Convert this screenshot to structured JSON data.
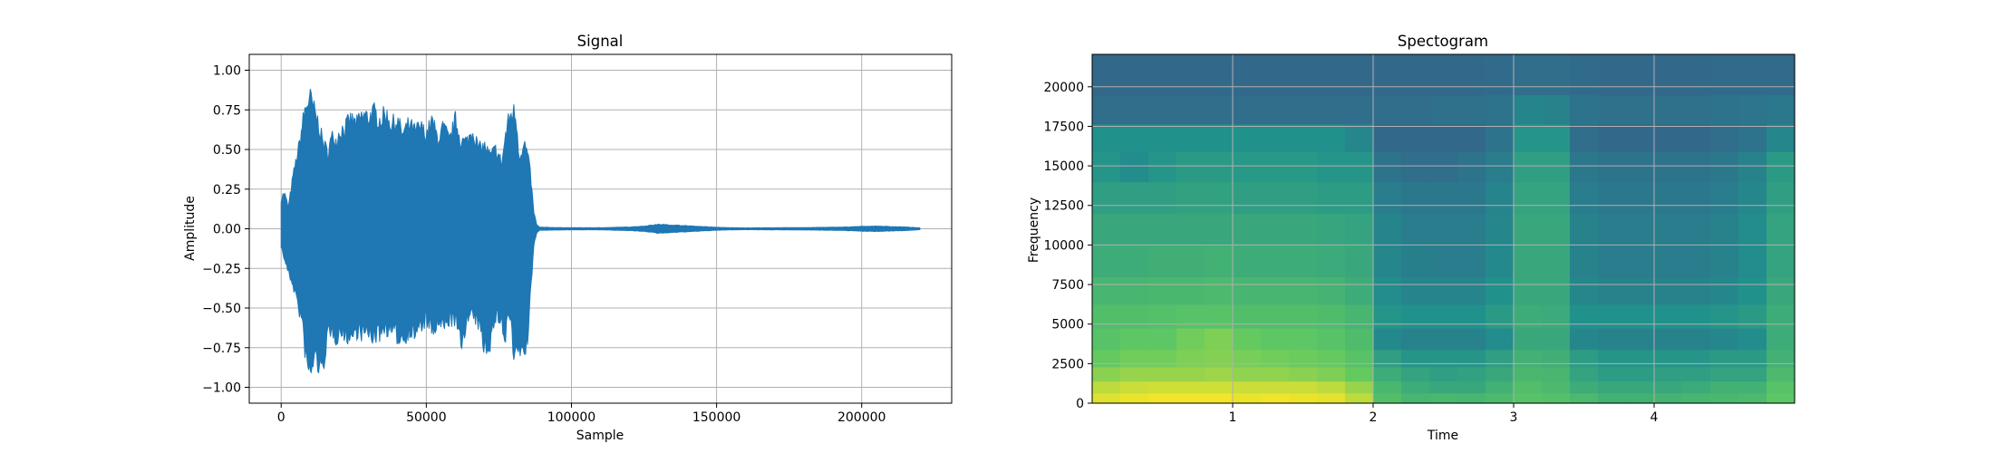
{
  "chart_data": [
    {
      "type": "line",
      "title": "Signal",
      "xlabel": "Sample",
      "ylabel": "Amplitude",
      "xlim": [
        -11000,
        231000
      ],
      "ylim": [
        -1.1,
        1.1
      ],
      "grid": true,
      "color": "#1f77b4",
      "xticks": [
        {
          "value": 0,
          "label": "0"
        },
        {
          "value": 50000,
          "label": "50000"
        },
        {
          "value": 100000,
          "label": "100000"
        },
        {
          "value": 150000,
          "label": "150000"
        },
        {
          "value": 200000,
          "label": "200000"
        }
      ],
      "yticks": [
        {
          "value": 1.0,
          "label": "1.00"
        },
        {
          "value": 0.75,
          "label": "0.75"
        },
        {
          "value": 0.5,
          "label": "0.50"
        },
        {
          "value": 0.25,
          "label": "0.25"
        },
        {
          "value": 0.0,
          "label": "0.00"
        },
        {
          "value": -0.25,
          "label": "−0.25"
        },
        {
          "value": -0.5,
          "label": "−0.50"
        },
        {
          "value": -0.75,
          "label": "−0.75"
        },
        {
          "value": -1.0,
          "label": "−1.00"
        }
      ],
      "envelope": {
        "x": [
          0,
          1000,
          2500,
          4000,
          5000,
          6000,
          7000,
          8000,
          9000,
          10000,
          11000,
          12000,
          13000,
          14000,
          15000,
          16000,
          17000,
          18000,
          19000,
          20000,
          22000,
          24000,
          26000,
          28000,
          30000,
          32000,
          34000,
          36000,
          38000,
          40000,
          42000,
          44000,
          46000,
          48000,
          50000,
          52000,
          54000,
          56000,
          58000,
          60000,
          62000,
          64000,
          66000,
          68000,
          70000,
          72000,
          74000,
          76000,
          77000,
          78000,
          79000,
          80000,
          81000,
          82000,
          83000,
          84000,
          85000,
          86000,
          87000,
          88000,
          89000,
          90000,
          100000,
          110000,
          120000,
          125000,
          130000,
          135000,
          140000,
          145000,
          150000,
          155000,
          160000,
          170000,
          180000,
          190000,
          195000,
          200000,
          205000,
          210000,
          215000,
          220000
        ],
        "upper": [
          0.2,
          0.25,
          0.15,
          0.35,
          0.45,
          0.55,
          0.68,
          0.8,
          0.87,
          0.9,
          0.84,
          0.77,
          0.72,
          0.62,
          0.57,
          0.52,
          0.6,
          0.65,
          0.6,
          0.67,
          0.7,
          0.75,
          0.72,
          0.78,
          0.77,
          0.8,
          0.75,
          0.79,
          0.72,
          0.74,
          0.65,
          0.72,
          0.67,
          0.7,
          0.65,
          0.74,
          0.62,
          0.7,
          0.6,
          0.75,
          0.6,
          0.6,
          0.68,
          0.55,
          0.57,
          0.5,
          0.55,
          0.45,
          0.6,
          0.72,
          0.78,
          0.81,
          0.76,
          0.5,
          0.55,
          0.58,
          0.5,
          0.35,
          0.12,
          0.03,
          0.01,
          0.01,
          0.007,
          0.007,
          0.012,
          0.018,
          0.03,
          0.025,
          0.02,
          0.015,
          0.01,
          0.007,
          0.006,
          0.007,
          0.008,
          0.01,
          0.012,
          0.016,
          0.018,
          0.015,
          0.012,
          0.006
        ],
        "lower": [
          -0.12,
          -0.2,
          -0.3,
          -0.38,
          -0.45,
          -0.55,
          -0.62,
          -0.8,
          -0.95,
          -1.0,
          -0.92,
          -0.87,
          -0.95,
          -1.0,
          -0.86,
          -0.72,
          -0.75,
          -0.7,
          -0.75,
          -0.7,
          -0.72,
          -0.75,
          -0.7,
          -0.72,
          -0.72,
          -0.74,
          -0.72,
          -0.68,
          -0.7,
          -0.74,
          -0.75,
          -0.7,
          -0.72,
          -0.68,
          -0.62,
          -0.72,
          -0.65,
          -0.68,
          -0.62,
          -0.63,
          -0.8,
          -0.62,
          -0.6,
          -0.65,
          -0.82,
          -0.78,
          -0.6,
          -0.62,
          -0.82,
          -0.58,
          -0.62,
          -0.88,
          -0.9,
          -0.8,
          -0.88,
          -0.82,
          -0.76,
          -0.42,
          -0.12,
          -0.03,
          -0.01,
          -0.01,
          -0.007,
          -0.007,
          -0.012,
          -0.018,
          -0.03,
          -0.025,
          -0.02,
          -0.015,
          -0.01,
          -0.007,
          -0.006,
          -0.007,
          -0.008,
          -0.01,
          -0.012,
          -0.016,
          -0.018,
          -0.015,
          -0.012,
          -0.006
        ]
      }
    },
    {
      "type": "heatmap",
      "title": "Spectogram",
      "xlabel": "Time",
      "ylabel": "Frequency",
      "xlim": [
        0.0,
        5.0
      ],
      "ylim": [
        0,
        22050
      ],
      "grid": true,
      "colormap": "viridis",
      "xticks": [
        {
          "value": 1,
          "label": "1"
        },
        {
          "value": 2,
          "label": "2"
        },
        {
          "value": 3,
          "label": "3"
        },
        {
          "value": 4,
          "label": "4"
        }
      ],
      "yticks": [
        {
          "value": 0,
          "label": "0"
        },
        {
          "value": 2500,
          "label": "2500"
        },
        {
          "value": 5000,
          "label": "5000"
        },
        {
          "value": 7500,
          "label": "7500"
        },
        {
          "value": 10000,
          "label": "10000"
        },
        {
          "value": 12500,
          "label": "12500"
        },
        {
          "value": 15000,
          "label": "15000"
        },
        {
          "value": 17500,
          "label": "17500"
        },
        {
          "value": 20000,
          "label": "20000"
        }
      ],
      "time_bins": [
        0.1,
        0.3,
        0.5,
        0.7,
        0.9,
        1.1,
        1.3,
        1.5,
        1.7,
        1.9,
        2.1,
        2.3,
        2.5,
        2.7,
        2.9,
        3.1,
        3.3,
        3.5,
        3.7,
        3.9,
        4.1,
        4.3,
        4.5,
        4.7,
        4.9
      ],
      "freq_bins": [
        300,
        1000,
        1800,
        2800,
        4000,
        5500,
        7000,
        9000,
        11000,
        13000,
        15000,
        16800,
        18500,
        20500
      ],
      "intensity": [
        [
          0.95,
          0.97,
          0.98,
          0.98,
          0.98,
          0.97,
          0.98,
          0.97,
          0.96,
          0.9,
          0.7,
          0.66,
          0.67,
          0.66,
          0.68,
          0.72,
          0.71,
          0.68,
          0.64,
          0.64,
          0.65,
          0.66,
          0.67,
          0.68,
          0.74
        ],
        [
          0.9,
          0.92,
          0.93,
          0.93,
          0.93,
          0.92,
          0.92,
          0.92,
          0.9,
          0.84,
          0.67,
          0.62,
          0.6,
          0.6,
          0.64,
          0.7,
          0.68,
          0.62,
          0.6,
          0.6,
          0.6,
          0.61,
          0.64,
          0.64,
          0.72
        ],
        [
          0.82,
          0.84,
          0.84,
          0.84,
          0.85,
          0.83,
          0.83,
          0.82,
          0.8,
          0.76,
          0.62,
          0.58,
          0.56,
          0.57,
          0.6,
          0.67,
          0.66,
          0.58,
          0.55,
          0.55,
          0.56,
          0.56,
          0.58,
          0.58,
          0.68
        ],
        [
          0.76,
          0.78,
          0.78,
          0.8,
          0.81,
          0.79,
          0.78,
          0.77,
          0.76,
          0.72,
          0.56,
          0.52,
          0.52,
          0.52,
          0.56,
          0.64,
          0.63,
          0.55,
          0.52,
          0.52,
          0.52,
          0.52,
          0.54,
          0.54,
          0.64
        ],
        [
          0.72,
          0.74,
          0.74,
          0.78,
          0.8,
          0.76,
          0.74,
          0.74,
          0.72,
          0.69,
          0.47,
          0.44,
          0.44,
          0.44,
          0.48,
          0.6,
          0.6,
          0.46,
          0.44,
          0.44,
          0.44,
          0.44,
          0.46,
          0.48,
          0.62
        ],
        [
          0.7,
          0.7,
          0.71,
          0.72,
          0.72,
          0.7,
          0.7,
          0.7,
          0.69,
          0.66,
          0.52,
          0.5,
          0.5,
          0.5,
          0.54,
          0.62,
          0.61,
          0.5,
          0.5,
          0.5,
          0.5,
          0.5,
          0.52,
          0.54,
          0.62
        ],
        [
          0.66,
          0.66,
          0.67,
          0.67,
          0.68,
          0.66,
          0.66,
          0.66,
          0.65,
          0.62,
          0.48,
          0.45,
          0.45,
          0.45,
          0.5,
          0.6,
          0.6,
          0.46,
          0.44,
          0.44,
          0.44,
          0.44,
          0.46,
          0.5,
          0.6
        ],
        [
          0.62,
          0.62,
          0.63,
          0.63,
          0.64,
          0.62,
          0.62,
          0.62,
          0.61,
          0.6,
          0.46,
          0.43,
          0.42,
          0.42,
          0.47,
          0.6,
          0.6,
          0.44,
          0.42,
          0.42,
          0.42,
          0.42,
          0.44,
          0.48,
          0.58
        ],
        [
          0.6,
          0.6,
          0.6,
          0.6,
          0.6,
          0.6,
          0.6,
          0.6,
          0.59,
          0.58,
          0.45,
          0.42,
          0.42,
          0.42,
          0.46,
          0.6,
          0.6,
          0.44,
          0.42,
          0.42,
          0.42,
          0.42,
          0.44,
          0.48,
          0.58
        ],
        [
          0.56,
          0.56,
          0.56,
          0.57,
          0.57,
          0.56,
          0.56,
          0.56,
          0.55,
          0.55,
          0.42,
          0.4,
          0.4,
          0.4,
          0.45,
          0.58,
          0.58,
          0.42,
          0.4,
          0.4,
          0.4,
          0.4,
          0.42,
          0.46,
          0.56
        ],
        [
          0.52,
          0.48,
          0.52,
          0.54,
          0.54,
          0.53,
          0.53,
          0.53,
          0.52,
          0.52,
          0.38,
          0.36,
          0.36,
          0.38,
          0.42,
          0.56,
          0.56,
          0.4,
          0.38,
          0.38,
          0.38,
          0.38,
          0.4,
          0.44,
          0.54
        ],
        [
          0.5,
          0.5,
          0.5,
          0.5,
          0.5,
          0.5,
          0.5,
          0.5,
          0.5,
          0.46,
          0.34,
          0.34,
          0.34,
          0.34,
          0.38,
          0.52,
          0.52,
          0.36,
          0.34,
          0.34,
          0.34,
          0.34,
          0.36,
          0.38,
          0.46
        ],
        [
          0.36,
          0.36,
          0.36,
          0.36,
          0.36,
          0.36,
          0.36,
          0.36,
          0.36,
          0.36,
          0.36,
          0.36,
          0.37,
          0.37,
          0.38,
          0.45,
          0.44,
          0.38,
          0.37,
          0.37,
          0.37,
          0.37,
          0.38,
          0.39,
          0.4
        ],
        [
          0.34,
          0.34,
          0.34,
          0.34,
          0.34,
          0.34,
          0.34,
          0.34,
          0.34,
          0.34,
          0.34,
          0.34,
          0.34,
          0.34,
          0.35,
          0.36,
          0.36,
          0.35,
          0.34,
          0.34,
          0.34,
          0.34,
          0.35,
          0.35,
          0.35
        ]
      ]
    }
  ]
}
